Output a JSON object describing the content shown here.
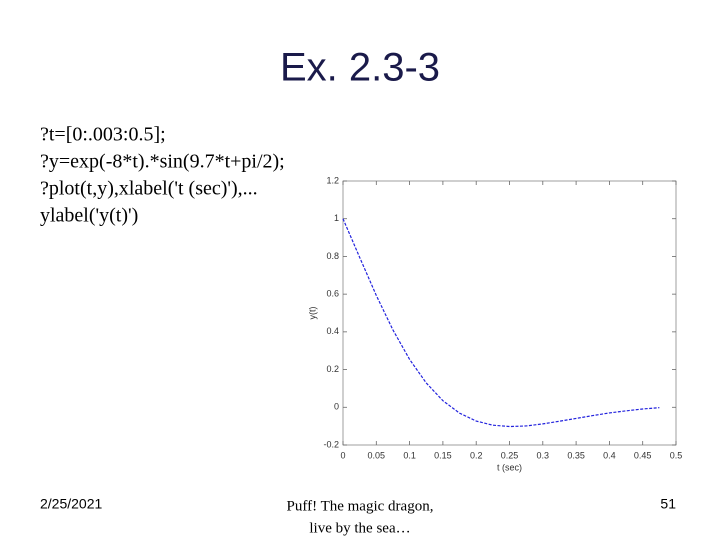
{
  "slide": {
    "title": "Ex. 2.3-3",
    "code": [
      "?t=[0:.003:0.5];",
      "?y=exp(-8*t).*sin(9.7*t+pi/2);",
      "?plot(t,y),xlabel('t (sec)'),...",
      "ylabel('y(t)')"
    ],
    "footer": {
      "date": "2/25/2021",
      "center": [
        "Puff! The magic dragon,",
        "live by the sea…"
      ],
      "page": "51"
    }
  },
  "chart_data": {
    "type": "line",
    "xlabel": "t (sec)",
    "ylabel": "y(t)",
    "x": [
      0,
      0.025,
      0.05,
      0.075,
      0.1,
      0.125,
      0.15,
      0.175,
      0.2,
      0.225,
      0.25,
      0.275,
      0.3,
      0.325,
      0.35,
      0.375,
      0.4,
      0.425,
      0.45,
      0.475
    ],
    "values": [
      1,
      0.795,
      0.593,
      0.41,
      0.254,
      0.129,
      0.035,
      -0.031,
      -0.073,
      -0.095,
      -0.102,
      -0.099,
      -0.088,
      -0.074,
      -0.059,
      -0.044,
      -0.03,
      -0.019,
      -0.009,
      -0.002
    ],
    "color": "#2222dd",
    "xlim": [
      0,
      0.5
    ],
    "xticks": [
      0,
      0.05,
      0.1,
      0.15,
      0.2,
      0.25,
      0.3,
      0.35,
      0.4,
      0.45,
      0.5
    ],
    "ylim": [
      -0.2,
      1.2
    ],
    "yticks": [
      -0.2,
      0,
      0.2,
      0.4,
      0.6,
      0.8,
      1,
      1.2
    ]
  }
}
